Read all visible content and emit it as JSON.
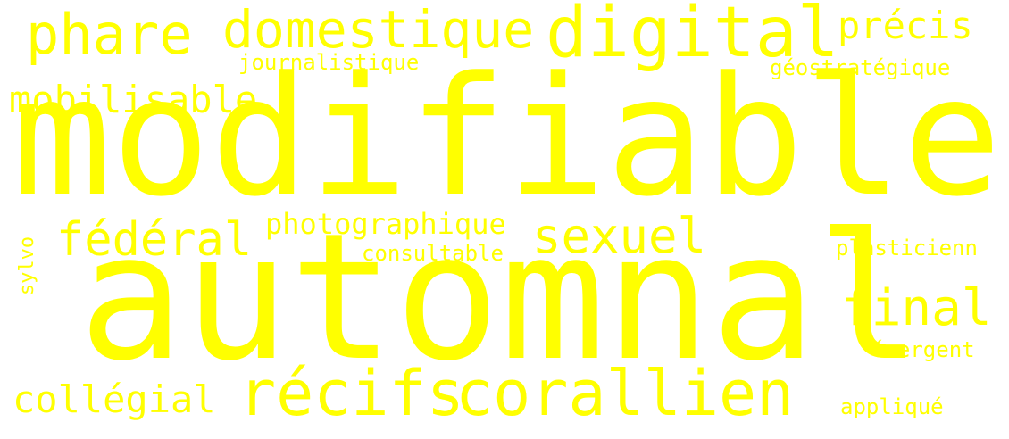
{
  "word_cloud": {
    "background_color": "#ffffff",
    "text_color": "#ffff00",
    "words": [
      {
        "id": "modifiable",
        "text": "modifiable"
      },
      {
        "id": "automnal",
        "text": "automnal"
      },
      {
        "id": "recifs",
        "text": "récifs"
      },
      {
        "id": "corallien",
        "text": "corallien"
      },
      {
        "id": "digital",
        "text": "digital"
      },
      {
        "id": "domestique",
        "text": "domestique"
      },
      {
        "id": "phare",
        "text": "phare"
      },
      {
        "id": "federal",
        "text": "fédéral"
      },
      {
        "id": "sexuel",
        "text": "sexuel"
      },
      {
        "id": "final",
        "text": "final"
      },
      {
        "id": "mobilisable",
        "text": "mobilisable"
      },
      {
        "id": "collegial",
        "text": "collégial"
      },
      {
        "id": "precis",
        "text": "précis"
      },
      {
        "id": "photographique",
        "text": "photographique"
      },
      {
        "id": "journalistique",
        "text": "journalistique"
      },
      {
        "id": "geostrategique",
        "text": "géostratégique"
      },
      {
        "id": "consultable",
        "text": "consultable"
      },
      {
        "id": "plasticienn",
        "text": "plasticienn"
      },
      {
        "id": "emergent",
        "text": "émergent"
      },
      {
        "id": "applique",
        "text": "appliqué"
      },
      {
        "id": "sylvo",
        "text": "sylvo"
      }
    ]
  }
}
